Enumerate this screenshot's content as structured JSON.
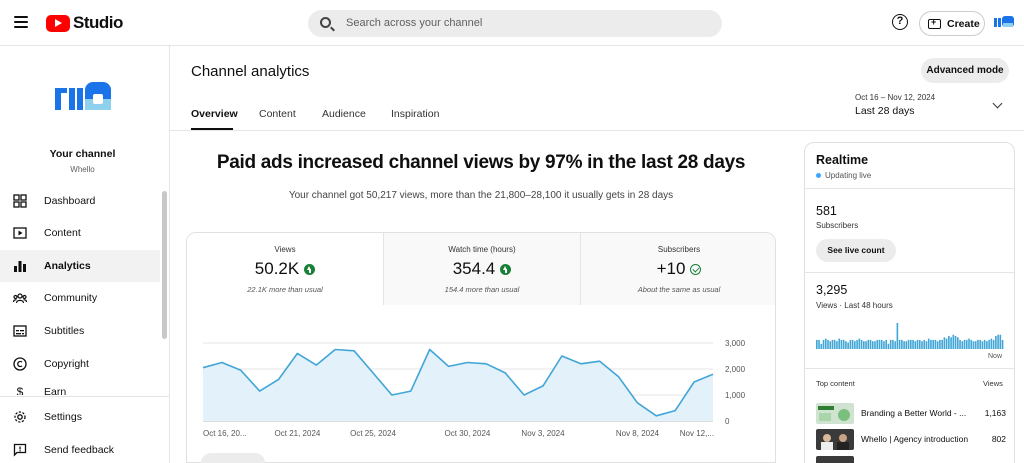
{
  "header": {
    "app_name": "Studio",
    "search_placeholder": "Search across your channel",
    "help_glyph": "?",
    "create_label": "Create"
  },
  "sidebar": {
    "channel_name": "Your channel",
    "channel_handle": "Whello",
    "items": [
      {
        "label": "Dashboard",
        "icon": "dashboard-icon"
      },
      {
        "label": "Content",
        "icon": "content-icon"
      },
      {
        "label": "Analytics",
        "icon": "analytics-icon",
        "active": true
      },
      {
        "label": "Community",
        "icon": "community-icon"
      },
      {
        "label": "Subtitles",
        "icon": "subtitles-icon"
      },
      {
        "label": "Copyright",
        "icon": "copyright-icon"
      },
      {
        "label": "Earn",
        "icon": "earn-icon"
      }
    ],
    "footer_items": [
      {
        "label": "Settings",
        "icon": "gear-icon"
      },
      {
        "label": "Send feedback",
        "icon": "feedback-icon"
      }
    ]
  },
  "page": {
    "title": "Channel analytics",
    "advanced_mode": "Advanced mode",
    "tabs": [
      "Overview",
      "Content",
      "Audience",
      "Inspiration"
    ],
    "date_range": "Oct 16 – Nov 12, 2024",
    "date_period": "Last 28 days",
    "headline": "Paid ads increased channel views by 97% in the last 28 days",
    "subline": "Your channel got 50,217 views, more than the 21,800–28,100 it usually gets in 28 days"
  },
  "metrics": [
    {
      "label": "Views",
      "value": "50.2K",
      "note": "22.1K more than usual",
      "trend": "up"
    },
    {
      "label": "Watch time (hours)",
      "value": "354.4",
      "note": "154.4 more than usual",
      "trend": "up"
    },
    {
      "label": "Subscribers",
      "value": "+10",
      "note": "About the same as usual",
      "trend": "same"
    }
  ],
  "chart_data": {
    "type": "area",
    "x_ticks": [
      "Oct 16, 20...",
      "Oct 21, 2024",
      "Oct 25, 2024",
      "Oct 30, 2024",
      "Nov 3, 2024",
      "Nov 8, 2024",
      "Nov 12,..."
    ],
    "y_ticks": [
      "3,000",
      "2,000",
      "1,000",
      "0"
    ],
    "ylim": [
      0,
      3000
    ],
    "values": [
      2050,
      2250,
      1950,
      1150,
      1600,
      2600,
      2150,
      2750,
      2700,
      1850,
      1000,
      1150,
      2750,
      2100,
      2250,
      2200,
      1850,
      1000,
      1350,
      2500,
      2200,
      2300,
      1700,
      700,
      200,
      400,
      1500,
      1800
    ],
    "grid": true,
    "color": "#41a6d6"
  },
  "realtime": {
    "title": "Realtime",
    "status": "Updating live",
    "subscribers": "581",
    "subscribers_label": "Subscribers",
    "live_count_button": "See live count",
    "views": "3,295",
    "views_label": "Views · Last 48 hours",
    "now_label": "Now",
    "bars": [
      0.35,
      0.35,
      0.2,
      0.35,
      0.4,
      0.35,
      0.3,
      0.35,
      0.35,
      0.3,
      0.4,
      0.35,
      0.35,
      0.3,
      0.25,
      0.35,
      0.35,
      0.3,
      0.35,
      0.4,
      0.35,
      0.3,
      0.3,
      0.35,
      0.35,
      0.3,
      0.3,
      0.35,
      0.35,
      0.35,
      0.3,
      0.35,
      0.2,
      0.35,
      0.35,
      0.3,
      1.0,
      0.35,
      0.35,
      0.3,
      0.3,
      0.35,
      0.35,
      0.35,
      0.3,
      0.35,
      0.35,
      0.3,
      0.35,
      0.3,
      0.4,
      0.35,
      0.35,
      0.35,
      0.3,
      0.35,
      0.35,
      0.45,
      0.4,
      0.5,
      0.45,
      0.55,
      0.5,
      0.45,
      0.35,
      0.3,
      0.35,
      0.35,
      0.4,
      0.35,
      0.3,
      0.3,
      0.35,
      0.35,
      0.3,
      0.35,
      0.3,
      0.35,
      0.4,
      0.35,
      0.5,
      0.55,
      0.55,
      0.35
    ],
    "top_content_label": "Top content",
    "top_content_col": "Views",
    "top_content": [
      {
        "title": "Branding a Better World - ...",
        "views": "1,163"
      },
      {
        "title": "Whello | Agency introduction",
        "views": "802"
      }
    ]
  }
}
